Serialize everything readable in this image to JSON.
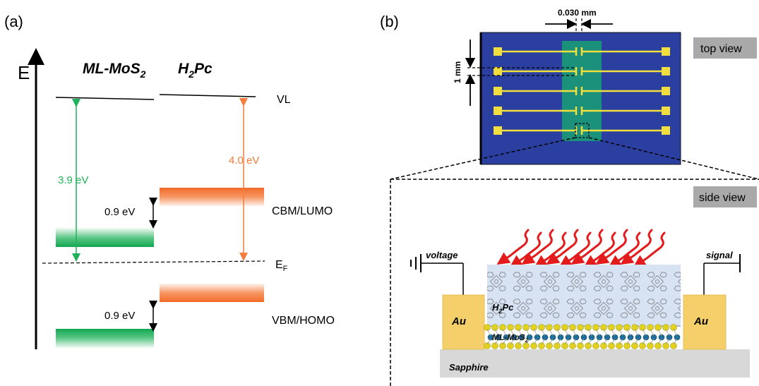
{
  "panel_a": {
    "label": "(a)",
    "axis_label": "E",
    "col_mos2": {
      "main": "ML-MoS",
      "sub": "2"
    },
    "col_h2pc": {
      "pre": "H",
      "sub": "2",
      "post": "Pc"
    },
    "vl_label": "VL",
    "cbm_label": "CBM/LUMO",
    "ef_label": {
      "main": "E",
      "sub": "F"
    },
    "vbm_label": "VBM/HOMO",
    "mos2_work": "3.9 eV",
    "h2pc_work": "4.0 eV",
    "cb_offset": "0.9 eV",
    "vb_offset": "0.9 eV",
    "colors": {
      "mos2": "#1fb25a",
      "h2pc": "#f47c3c"
    }
  },
  "panel_b": {
    "label": "(b)",
    "width_label": "0.030 mm",
    "pitch_label": "1 mm",
    "top_view": "top view",
    "side_view": "side view",
    "voltage": "voltage",
    "signal": "signal",
    "au_left": "Au",
    "au_right": "Au",
    "h2pc": {
      "pre": "H",
      "sub": "2",
      "post": "Pc"
    },
    "mos2": {
      "main": "ML-MoS",
      "sub": "2"
    },
    "sapphire": "Sapphire",
    "colors": {
      "substrate": "#2a3fa0",
      "channel": "#1a9a78",
      "electrode": "#f2de3c",
      "au": "#f5cf6a",
      "h2pc_layer": "#d7e3f3",
      "sapphire": "#d8d8d8",
      "label_box": "#a9a9a9",
      "light": "#e31b1b"
    }
  }
}
